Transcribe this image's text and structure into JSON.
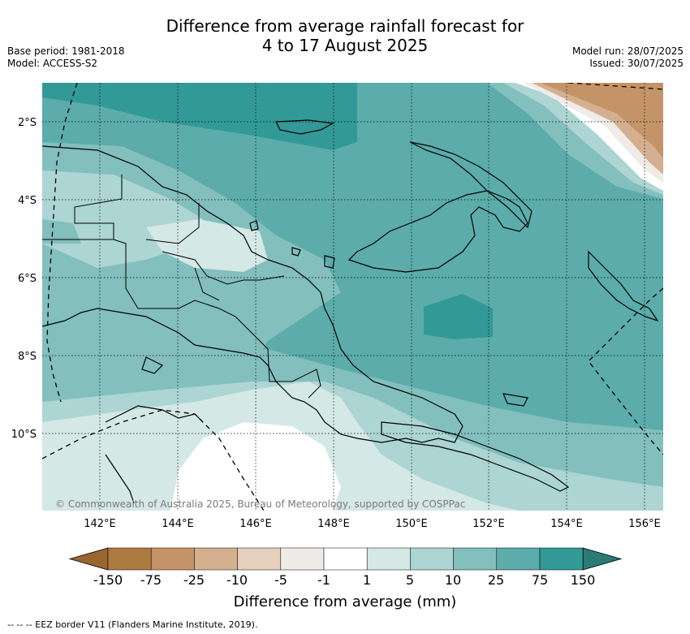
{
  "header": {
    "title_line1": "Difference from average rainfall forecast for",
    "title_line2": "4 to 17 August 2025",
    "base_period": "Base period: 1981-2018",
    "model": "Model: ACCESS-S2",
    "model_run": "Model run: 28/07/2025",
    "issued": "Issued: 30/07/2025"
  },
  "map": {
    "lat_labels": [
      "2°S",
      "4°S",
      "6°S",
      "8°S",
      "10°S"
    ],
    "lon_labels": [
      "142°E",
      "144°E",
      "146°E",
      "148°E",
      "150°E",
      "152°E",
      "154°E",
      "156°E"
    ],
    "copyright": "© Commonwealth of Australia 2025, Bureau of Meteorology, supported by COSPPac"
  },
  "colorbar": {
    "title": "Difference from average (mm)",
    "tick_labels": [
      "-150",
      "-75",
      "-25",
      "-10",
      "-5",
      "-1",
      "1",
      "5",
      "10",
      "25",
      "75",
      "150"
    ],
    "colors": [
      "#9a6630",
      "#ad7a42",
      "#c49468",
      "#d4af90",
      "#e6d0bd",
      "#efebe6",
      "#ffffff",
      "#d4e8e6",
      "#acd5d3",
      "#82bfbd",
      "#5bacaa",
      "#329996",
      "#2c7a76"
    ]
  },
  "footnote": "--  --  -- EEZ border V11 (Flanders Marine Institute, 2019)."
}
